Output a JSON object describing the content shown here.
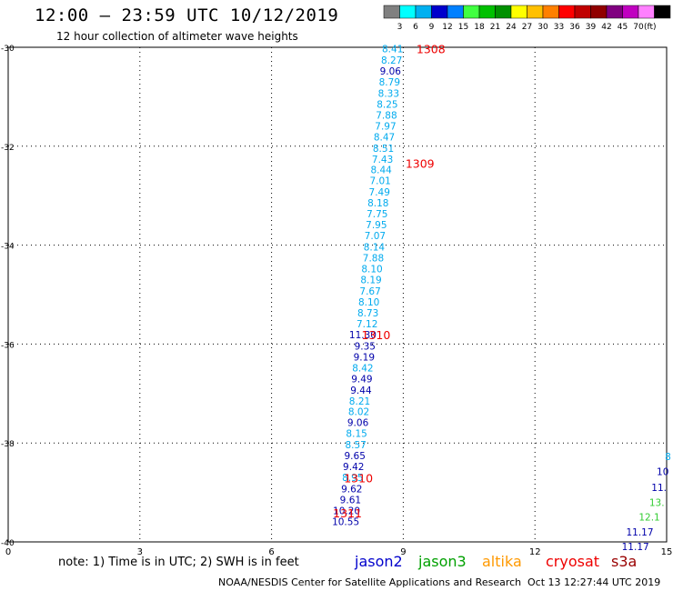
{
  "header": {
    "title": "12:00  –  23:59 UTC 10/12/2019",
    "subtitle": "12 hour collection of altimeter wave heights"
  },
  "legend": {
    "ticks": [
      "3",
      "6",
      "9",
      "12",
      "15",
      "18",
      "21",
      "24",
      "27",
      "30",
      "33",
      "36",
      "39",
      "42",
      "45",
      "70"
    ],
    "unit": "(ft)",
    "colors": [
      "#808080",
      "#00ffff",
      "#00b0f0",
      "#0000cc",
      "#0080ff",
      "#40ff40",
      "#00c000",
      "#009000",
      "#ffff00",
      "#ffc000",
      "#ff8000",
      "#ff0000",
      "#c00000",
      "#900000",
      "#800080",
      "#c000c0",
      "#ff80ff",
      "#000000"
    ]
  },
  "footer": {
    "note": "note:  1) Time is in UTC;  2) SWH is in feet",
    "satellites": [
      {
        "name": "jason2",
        "color": "#0000cc"
      },
      {
        "name": "jason3",
        "color": "#00a000"
      },
      {
        "name": "altika",
        "color": "#ff9900"
      },
      {
        "name": "cryosat",
        "color": "#ee0000"
      },
      {
        "name": "s3a",
        "color": "#990000"
      }
    ],
    "credit": "NOAA/NESDIS Center for Satellite Applications and Research",
    "timestamp": "Oct 13 12:27:44 UTC 2019"
  },
  "chart_data": {
    "type": "scatter",
    "xlim": [
      0,
      15
    ],
    "ylim": [
      -40,
      -30
    ],
    "x_ticks": [
      "0",
      "3",
      "6",
      "9",
      "12",
      "15"
    ],
    "y_ticks": [
      "-30",
      "-32",
      "-34",
      "-36",
      "-38",
      "-40"
    ],
    "grid": true,
    "color_scale": {
      "light_blue": "#00aaee",
      "dark_blue": "#0000aa",
      "green": "#33cc33",
      "time_label": "#ee0000"
    },
    "track": [
      {
        "x": 9.0,
        "y": -30.1,
        "v": "8.41",
        "c": "light_blue"
      },
      {
        "x": 8.98,
        "y": -30.33,
        "v": "8.27",
        "c": "light_blue"
      },
      {
        "x": 8.95,
        "y": -30.55,
        "v": "9.06",
        "c": "dark_blue"
      },
      {
        "x": 8.93,
        "y": -30.77,
        "v": "8.79",
        "c": "light_blue"
      },
      {
        "x": 8.91,
        "y": -31.0,
        "v": "8.33",
        "c": "light_blue"
      },
      {
        "x": 8.88,
        "y": -31.22,
        "v": "8.25",
        "c": "light_blue"
      },
      {
        "x": 8.86,
        "y": -31.44,
        "v": "7.88",
        "c": "light_blue"
      },
      {
        "x": 8.84,
        "y": -31.66,
        "v": "7.97",
        "c": "light_blue"
      },
      {
        "x": 8.81,
        "y": -31.88,
        "v": "8.47",
        "c": "light_blue"
      },
      {
        "x": 8.79,
        "y": -32.11,
        "v": "8.51",
        "c": "light_blue"
      },
      {
        "x": 8.77,
        "y": -32.33,
        "v": "7.43",
        "c": "light_blue"
      },
      {
        "x": 8.74,
        "y": -32.55,
        "v": "8.44",
        "c": "light_blue"
      },
      {
        "x": 8.72,
        "y": -32.77,
        "v": "7.01",
        "c": "light_blue"
      },
      {
        "x": 8.7,
        "y": -33.0,
        "v": "7.49",
        "c": "light_blue"
      },
      {
        "x": 8.67,
        "y": -33.22,
        "v": "8.18",
        "c": "light_blue"
      },
      {
        "x": 8.65,
        "y": -33.44,
        "v": "7.75",
        "c": "light_blue"
      },
      {
        "x": 8.63,
        "y": -33.66,
        "v": "7.95",
        "c": "light_blue"
      },
      {
        "x": 8.6,
        "y": -33.88,
        "v": "7.07",
        "c": "light_blue"
      },
      {
        "x": 8.58,
        "y": -34.11,
        "v": "8.14",
        "c": "light_blue"
      },
      {
        "x": 8.56,
        "y": -34.33,
        "v": "7.88",
        "c": "light_blue"
      },
      {
        "x": 8.53,
        "y": -34.55,
        "v": "8.10",
        "c": "light_blue"
      },
      {
        "x": 8.51,
        "y": -34.77,
        "v": "8.19",
        "c": "light_blue"
      },
      {
        "x": 8.49,
        "y": -35.0,
        "v": "7.67",
        "c": "light_blue"
      },
      {
        "x": 8.46,
        "y": -35.22,
        "v": "8.10",
        "c": "light_blue"
      },
      {
        "x": 8.44,
        "y": -35.44,
        "v": "8.73",
        "c": "light_blue"
      },
      {
        "x": 8.42,
        "y": -35.66,
        "v": "7.12",
        "c": "light_blue"
      },
      {
        "x": 8.39,
        "y": -35.88,
        "v": "11.30",
        "c": "dark_blue"
      },
      {
        "x": 8.37,
        "y": -36.11,
        "v": "9.35",
        "c": "dark_blue"
      },
      {
        "x": 8.35,
        "y": -36.33,
        "v": "9.19",
        "c": "dark_blue"
      },
      {
        "x": 8.32,
        "y": -36.55,
        "v": "8.42",
        "c": "light_blue"
      },
      {
        "x": 8.3,
        "y": -36.77,
        "v": "9.49",
        "c": "dark_blue"
      },
      {
        "x": 8.28,
        "y": -37.0,
        "v": "9.44",
        "c": "dark_blue"
      },
      {
        "x": 8.25,
        "y": -37.22,
        "v": "8.21",
        "c": "light_blue"
      },
      {
        "x": 8.23,
        "y": -37.44,
        "v": "8.02",
        "c": "light_blue"
      },
      {
        "x": 8.21,
        "y": -37.66,
        "v": "9.06",
        "c": "dark_blue"
      },
      {
        "x": 8.18,
        "y": -37.88,
        "v": "8.15",
        "c": "light_blue"
      },
      {
        "x": 8.16,
        "y": -38.11,
        "v": "8.57",
        "c": "light_blue"
      },
      {
        "x": 8.14,
        "y": -38.33,
        "v": "9.65",
        "c": "dark_blue"
      },
      {
        "x": 8.11,
        "y": -38.55,
        "v": "9.42",
        "c": "dark_blue"
      },
      {
        "x": 8.09,
        "y": -38.77,
        "v": "8.95",
        "c": "light_blue"
      },
      {
        "x": 8.07,
        "y": -39.0,
        "v": "9.62",
        "c": "dark_blue"
      },
      {
        "x": 8.04,
        "y": -39.22,
        "v": "9.61",
        "c": "dark_blue"
      },
      {
        "x": 8.02,
        "y": -39.44,
        "v": "10.20",
        "c": "dark_blue"
      },
      {
        "x": 8.0,
        "y": -39.66,
        "v": "10.55",
        "c": "dark_blue"
      }
    ],
    "edge_track": [
      {
        "x": 15.1,
        "y": -38.35,
        "v": "8",
        "c": "light_blue"
      },
      {
        "x": 15.05,
        "y": -38.65,
        "v": "10",
        "c": "dark_blue"
      },
      {
        "x": 15.0,
        "y": -38.97,
        "v": "11.",
        "c": "dark_blue"
      },
      {
        "x": 14.95,
        "y": -39.27,
        "v": "13.",
        "c": "green"
      },
      {
        "x": 14.85,
        "y": -39.57,
        "v": "12.1",
        "c": "green"
      },
      {
        "x": 14.7,
        "y": -39.87,
        "v": "11.17",
        "c": "dark_blue"
      },
      {
        "x": 14.6,
        "y": -40.17,
        "v": "11.17",
        "c": "dark_blue"
      }
    ],
    "time_labels": [
      {
        "x": 9.3,
        "y": -30.12,
        "text": "1308"
      },
      {
        "x": 9.05,
        "y": -32.44,
        "text": "1309"
      },
      {
        "x": 8.05,
        "y": -35.9,
        "text": "1310"
      },
      {
        "x": 7.65,
        "y": -38.8,
        "text": "1310"
      },
      {
        "x": 7.4,
        "y": -39.5,
        "text": "1311"
      }
    ]
  }
}
